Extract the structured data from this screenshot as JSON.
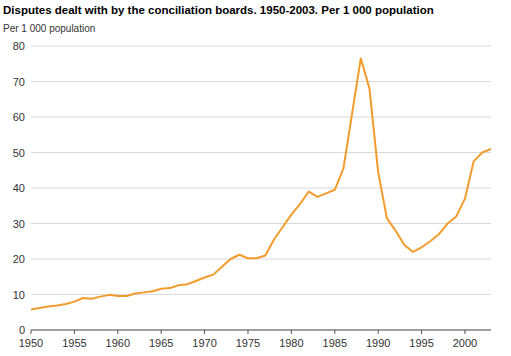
{
  "chart_data": {
    "type": "line",
    "title": "Disputes dealt with by the conciliation boards. 1950-2003. Per 1 000 population",
    "ylabel": "Per 1 000 population",
    "x": [
      1950,
      1951,
      1952,
      1953,
      1954,
      1955,
      1956,
      1957,
      1958,
      1959,
      1960,
      1961,
      1962,
      1963,
      1964,
      1965,
      1966,
      1967,
      1968,
      1969,
      1970,
      1971,
      1972,
      1973,
      1974,
      1975,
      1976,
      1977,
      1978,
      1979,
      1980,
      1981,
      1982,
      1983,
      1984,
      1985,
      1986,
      1987,
      1988,
      1989,
      1990,
      1991,
      1992,
      1993,
      1994,
      1995,
      1996,
      1997,
      1998,
      1999,
      2000,
      2001,
      2002,
      2003
    ],
    "values": [
      5.8,
      6.2,
      6.6,
      6.9,
      7.3,
      8.0,
      9.0,
      8.8,
      9.4,
      9.9,
      9.6,
      9.6,
      10.3,
      10.6,
      10.9,
      11.6,
      11.8,
      12.6,
      12.9,
      13.8,
      14.8,
      15.6,
      17.8,
      20.0,
      21.2,
      20.2,
      20.2,
      21.0,
      25.5,
      29.0,
      32.5,
      35.5,
      39.0,
      37.5,
      38.5,
      39.5,
      45.5,
      61.0,
      76.5,
      68.0,
      44.5,
      31.5,
      28.0,
      24.0,
      22.0,
      23.3,
      25.0,
      27.0,
      30.0,
      32.0,
      37.0,
      47.5,
      50.0,
      51.0
    ],
    "color": "#f39c2e",
    "xlim": [
      1950,
      2003
    ],
    "xticks": [
      1950,
      1955,
      1960,
      1965,
      1970,
      1975,
      1980,
      1985,
      1990,
      1995,
      2000
    ],
    "ylim": [
      0,
      80
    ],
    "yticks": [
      0,
      10,
      20,
      30,
      40,
      50,
      60,
      70,
      80
    ],
    "grid": true
  }
}
